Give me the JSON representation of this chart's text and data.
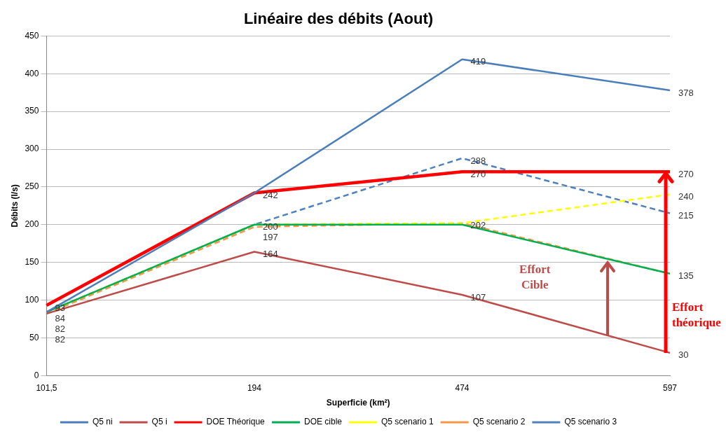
{
  "chart_data": {
    "type": "line",
    "title": "Linéaire des débits (Aout)",
    "xlabel": "Superficie (km²)",
    "ylabel": "Débits (l/s)",
    "categories": [
      "101,5",
      "194",
      "474",
      "597"
    ],
    "ylim": [
      0,
      450
    ],
    "yticks": [
      0,
      50,
      100,
      150,
      200,
      250,
      300,
      350,
      400,
      450
    ],
    "grid": "y",
    "legend": "bottom",
    "marker": "none",
    "series": [
      {
        "name": "Q5 ni",
        "color": "#4a7ebb",
        "line_style": "solid",
        "values": [
          84,
          242,
          419,
          378
        ],
        "value_labels": [
          null,
          null,
          "419",
          "378"
        ]
      },
      {
        "name": "Q5 i",
        "color": "#be4b48",
        "line_style": "solid",
        "values": [
          82,
          164,
          107,
          30
        ],
        "value_labels": [
          "82",
          "164",
          "107",
          "30"
        ]
      },
      {
        "name": "DOE Théorique",
        "color": "#ff0000",
        "line_style": "solid",
        "values": [
          93,
          242,
          270,
          270
        ],
        "value_labels": [
          "93",
          "242",
          "270",
          "270"
        ]
      },
      {
        "name": "DOE cible",
        "color": "#00b050",
        "line_style": "solid",
        "values": [
          84,
          200,
          200,
          135
        ],
        "value_labels": [
          "84",
          "200",
          null,
          null
        ]
      },
      {
        "name": "Q5 scenario 1",
        "color": "#ffff00",
        "line_style": "dashed",
        "values": [
          84,
          200,
          202,
          240
        ],
        "value_labels": [
          null,
          null,
          null,
          "240"
        ]
      },
      {
        "name": "Q5 scenario 2",
        "color": "#f79646",
        "line_style": "dashed",
        "values": [
          82,
          197,
          202,
          135
        ],
        "value_labels": [
          "82",
          "197",
          "202",
          "135"
        ]
      },
      {
        "name": "Q5 scenario 3",
        "color": "#4f81bd",
        "line_style": "dashed",
        "values": [
          84,
          200,
          288,
          215
        ],
        "value_labels": [
          null,
          null,
          "288",
          "215"
        ]
      }
    ],
    "annotations": [
      "Effort Cible",
      "Effort théorique"
    ]
  }
}
